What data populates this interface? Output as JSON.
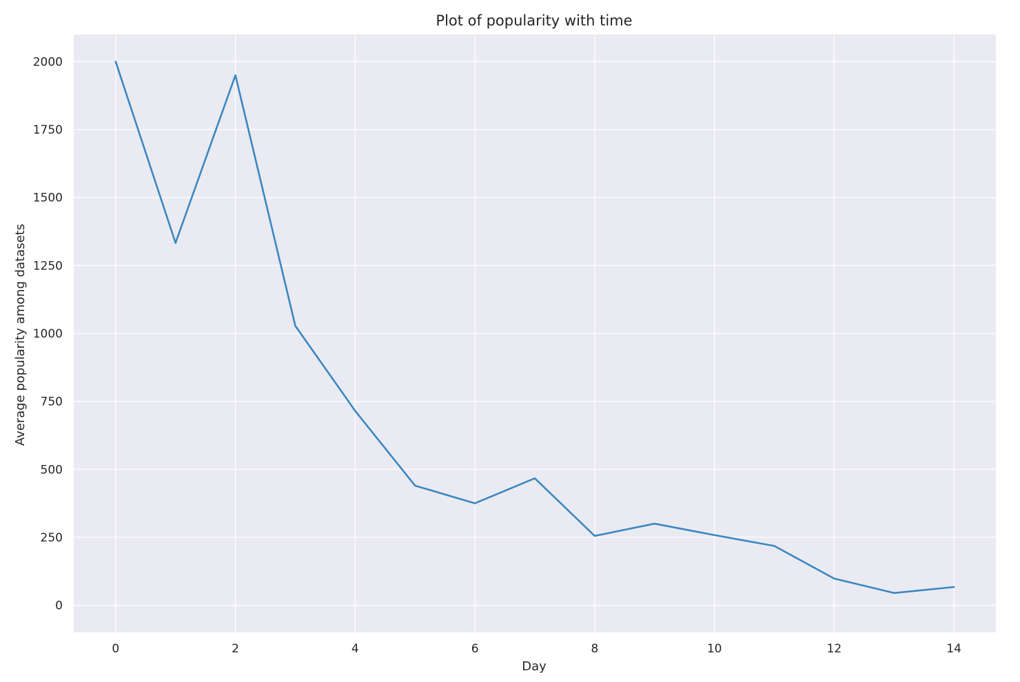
{
  "chart_data": {
    "type": "line",
    "title": "Plot of popularity with time",
    "xlabel": "Day",
    "ylabel": "Average popularity among datasets",
    "xlim": [
      -0.7,
      14.7
    ],
    "ylim": [
      -100,
      2100
    ],
    "xticks": [
      0,
      2,
      4,
      6,
      8,
      10,
      12,
      14
    ],
    "yticks": [
      0,
      250,
      500,
      750,
      1000,
      1250,
      1500,
      1750,
      2000
    ],
    "grid": true,
    "series": [
      {
        "x": [
          0,
          1,
          2,
          3,
          4,
          5,
          6,
          7,
          8,
          9,
          10,
          11,
          12,
          13,
          14
        ],
        "y": [
          2000,
          1333,
          1950,
          1028,
          715,
          440,
          375,
          467,
          255,
          300,
          258,
          218,
          98,
          45,
          67
        ]
      }
    ]
  },
  "colors": {
    "background": "#eaeaf2",
    "grid": "#ffffff",
    "line": "#3a87c0",
    "text": "#262626"
  }
}
